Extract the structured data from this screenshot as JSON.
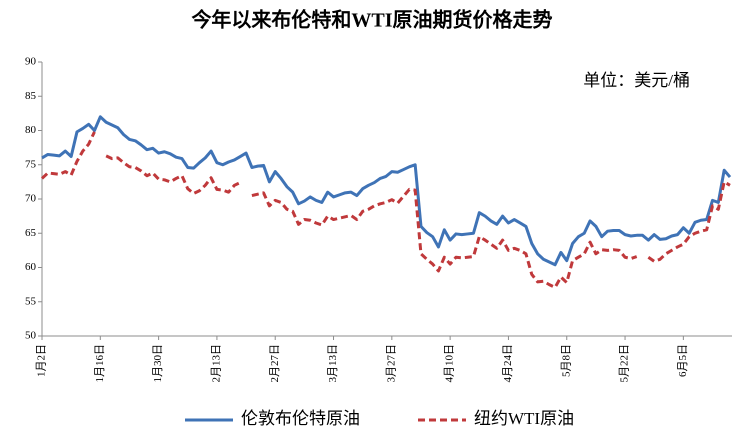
{
  "chart_data": {
    "type": "line",
    "title": "今年以来布伦特和WTI原油期货价格走势",
    "annotation": "单位：美元/桶",
    "categories": [
      "1月2日",
      null,
      null,
      null,
      null,
      null,
      null,
      null,
      null,
      null,
      "1月16日",
      null,
      null,
      null,
      null,
      null,
      null,
      null,
      null,
      null,
      "1月30日",
      null,
      null,
      null,
      null,
      null,
      null,
      null,
      null,
      null,
      "2月13日",
      null,
      null,
      null,
      null,
      null,
      null,
      null,
      null,
      null,
      "2月27日",
      null,
      null,
      null,
      null,
      null,
      null,
      null,
      null,
      null,
      "3月13日",
      null,
      null,
      null,
      null,
      null,
      null,
      null,
      null,
      null,
      "3月27日",
      null,
      null,
      null,
      null,
      null,
      null,
      null,
      null,
      null,
      "4月10日",
      null,
      null,
      null,
      null,
      null,
      null,
      null,
      null,
      null,
      "4月24日",
      null,
      null,
      null,
      null,
      null,
      null,
      null,
      null,
      null,
      "5月8日",
      null,
      null,
      null,
      null,
      null,
      null,
      null,
      null,
      null,
      "5月22日",
      null,
      null,
      null,
      null,
      null,
      null,
      null,
      null,
      null,
      "6月5日",
      null,
      null,
      null,
      null,
      null,
      null,
      null,
      null
    ],
    "series": [
      {
        "name": "伦敦布伦特原油",
        "color": "#3f73b6",
        "dashed": false,
        "values": [
          76.0,
          76.5,
          76.4,
          76.3,
          77.0,
          76.2,
          79.8,
          80.3,
          80.9,
          80.0,
          82.0,
          81.2,
          80.8,
          80.4,
          79.4,
          78.7,
          78.5,
          77.9,
          77.2,
          77.4,
          76.7,
          76.9,
          76.6,
          76.1,
          75.9,
          74.6,
          74.5,
          75.3,
          76.0,
          77.0,
          75.3,
          75.0,
          75.4,
          75.7,
          76.2,
          76.7,
          74.6,
          74.8,
          74.9,
          72.5,
          74.0,
          73.0,
          71.8,
          71.0,
          69.3,
          69.7,
          70.3,
          69.8,
          69.5,
          71.0,
          70.3,
          70.6,
          70.9,
          71.0,
          70.5,
          71.5,
          72.0,
          72.4,
          73.0,
          73.3,
          74.0,
          73.9,
          74.3,
          74.7,
          75.0,
          66.0,
          65.1,
          64.5,
          63.0,
          65.5,
          64.0,
          64.9,
          64.8,
          64.9,
          65.0,
          68.0,
          67.5,
          66.8,
          66.3,
          67.5,
          66.5,
          67.0,
          66.5,
          66.0,
          63.5,
          62.0,
          61.2,
          60.8,
          60.4,
          62.2,
          61.0,
          63.5,
          64.5,
          65.0,
          66.8,
          66.0,
          64.5,
          65.3,
          65.4,
          65.4,
          64.8,
          64.6,
          64.7,
          64.7,
          64.0,
          64.8,
          64.1,
          64.2,
          64.6,
          64.8,
          65.8,
          65.0,
          66.6,
          66.9,
          67.0,
          69.8,
          69.5,
          74.2,
          73.2
        ]
      },
      {
        "name": "纽约WTI原油",
        "color": "#c0393b",
        "dashed": true,
        "values": [
          73.0,
          73.8,
          73.7,
          73.6,
          74.0,
          73.5,
          75.5,
          77.0,
          78.0,
          79.8,
          null,
          76.3,
          75.9,
          76.0,
          75.3,
          74.7,
          74.6,
          74.1,
          73.4,
          73.8,
          72.9,
          72.8,
          72.5,
          73.0,
          73.4,
          71.5,
          70.8,
          71.2,
          72.0,
          73.1,
          71.4,
          71.3,
          71.0,
          72.0,
          72.4,
          null,
          70.5,
          70.7,
          70.9,
          69.0,
          69.8,
          69.5,
          68.5,
          68.2,
          66.3,
          67.0,
          66.9,
          66.5,
          66.2,
          67.5,
          67.0,
          67.2,
          67.4,
          67.6,
          67.0,
          68.2,
          68.5,
          69.0,
          69.3,
          69.5,
          69.9,
          69.4,
          70.4,
          71.4,
          71.3,
          62.0,
          61.2,
          60.5,
          59.5,
          61.5,
          60.5,
          61.5,
          61.4,
          61.5,
          61.6,
          64.5,
          64.0,
          63.4,
          62.8,
          64.0,
          62.5,
          62.8,
          62.5,
          62.0,
          59.0,
          57.9,
          58.0,
          57.5,
          57.1,
          58.6,
          57.8,
          61.0,
          61.5,
          62.0,
          63.7,
          62.0,
          62.6,
          62.5,
          62.6,
          62.5,
          61.5,
          61.3,
          61.6,
          null,
          61.5,
          60.9,
          61.2,
          62.0,
          62.5,
          63.0,
          63.4,
          64.5,
          65.0,
          65.3,
          65.5,
          69.0,
          68.5,
          72.5,
          72.0
        ]
      }
    ],
    "ylim": [
      50,
      90
    ],
    "yticks": [
      50,
      55,
      60,
      65,
      70,
      75,
      80,
      85,
      90
    ],
    "grid": false
  }
}
